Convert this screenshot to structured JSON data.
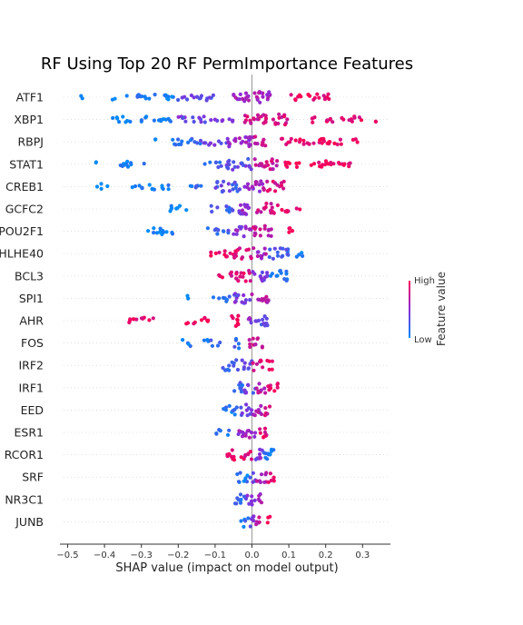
{
  "chart_data": {
    "type": "scatter",
    "title": "RF Using Top 20 RF PermImportance Features",
    "xlabel": "SHAP value (impact on model output)",
    "ylabel": "",
    "xlim": [
      -0.52,
      0.37
    ],
    "xticks": [
      -0.5,
      -0.4,
      -0.3,
      -0.2,
      -0.1,
      0.0,
      0.1,
      0.2,
      0.3
    ],
    "xtick_labels": [
      "−0.5",
      "−0.4",
      "−0.3",
      "−0.2",
      "−0.1",
      "0.0",
      "0.1",
      "0.2",
      "0.3"
    ],
    "grid": false,
    "colorbar": {
      "label": "Feature value",
      "high_label": "High",
      "low_label": "Low",
      "high_color": "#ff0052",
      "mid_color": "#8c2cd8",
      "low_color": "#008bfb"
    },
    "features": [
      {
        "name": "ATF1",
        "segments": [
          [
            -0.47,
            -0.46,
            0
          ],
          [
            -0.38,
            -0.37,
            0
          ],
          [
            -0.34,
            -0.21,
            0.1
          ],
          [
            -0.21,
            -0.1,
            0.35
          ],
          [
            -0.05,
            0.0,
            0.55
          ],
          [
            0.0,
            0.06,
            0.6
          ],
          [
            0.08,
            0.21,
            0.9
          ]
        ]
      },
      {
        "name": "XBP1",
        "segments": [
          [
            -0.38,
            -0.32,
            0
          ],
          [
            -0.31,
            -0.22,
            0.1
          ],
          [
            -0.2,
            -0.05,
            0.4
          ],
          [
            -0.02,
            0.1,
            0.8
          ],
          [
            0.16,
            0.3,
            0.9
          ],
          [
            0.33,
            0.34,
            1
          ]
        ]
      },
      {
        "name": "RBPJ",
        "segments": [
          [
            -0.27,
            -0.26,
            0
          ],
          [
            -0.23,
            -0.14,
            0.15
          ],
          [
            -0.14,
            -0.06,
            0.35
          ],
          [
            -0.07,
            0.0,
            0.55
          ],
          [
            0.0,
            0.04,
            0.7
          ],
          [
            0.08,
            0.3,
            0.95
          ]
        ]
      },
      {
        "name": "STAT1",
        "segments": [
          [
            -0.43,
            -0.42,
            0
          ],
          [
            -0.36,
            -0.28,
            0.05
          ],
          [
            -0.13,
            -0.08,
            0.2
          ],
          [
            -0.07,
            0.0,
            0.35
          ],
          [
            0.0,
            0.07,
            0.75
          ],
          [
            0.08,
            0.28,
            0.95
          ]
        ]
      },
      {
        "name": "CREB1",
        "segments": [
          [
            -0.42,
            -0.39,
            0
          ],
          [
            -0.33,
            -0.22,
            0.05
          ],
          [
            -0.17,
            -0.13,
            0.15
          ],
          [
            -0.1,
            -0.03,
            0.3
          ],
          [
            -0.02,
            0.03,
            0.55
          ],
          [
            0.03,
            0.09,
            0.85
          ]
        ]
      },
      {
        "name": "GCFC2",
        "segments": [
          [
            -0.23,
            -0.17,
            0
          ],
          [
            -0.12,
            -0.05,
            0.2
          ],
          [
            -0.04,
            0.01,
            0.5
          ],
          [
            0.01,
            0.07,
            0.8
          ],
          [
            0.08,
            0.13,
            0.9
          ]
        ]
      },
      {
        "name": "POU2F1",
        "segments": [
          [
            -0.29,
            -0.2,
            0.05
          ],
          [
            -0.12,
            -0.05,
            0.2
          ],
          [
            -0.05,
            0.0,
            0.5
          ],
          [
            0.0,
            0.06,
            0.75
          ],
          [
            0.08,
            0.11,
            0.9
          ]
        ]
      },
      {
        "name": "BHLHE40",
        "segments": [
          [
            -0.12,
            -0.05,
            0.95
          ],
          [
            -0.05,
            0.0,
            0.85
          ],
          [
            0.0,
            0.04,
            0.6
          ],
          [
            0.04,
            0.1,
            0.25
          ],
          [
            0.12,
            0.15,
            0.05
          ]
        ]
      },
      {
        "name": "BCL3",
        "segments": [
          [
            -0.09,
            -0.07,
            0.95
          ],
          [
            -0.06,
            0.0,
            0.85
          ],
          [
            0.0,
            0.05,
            0.4
          ],
          [
            0.05,
            0.1,
            0.1
          ]
        ]
      },
      {
        "name": "SPI1",
        "segments": [
          [
            -0.18,
            -0.17,
            0.05
          ],
          [
            -0.11,
            -0.06,
            0.2
          ],
          [
            -0.05,
            0.0,
            0.4
          ],
          [
            0.0,
            0.05,
            0.7
          ]
        ]
      },
      {
        "name": "AHR",
        "segments": [
          [
            -0.34,
            -0.26,
            0.9
          ],
          [
            -0.18,
            -0.11,
            1
          ],
          [
            -0.06,
            -0.03,
            0.95
          ],
          [
            -0.01,
            0.01,
            0.5
          ],
          [
            0.01,
            0.05,
            0.3
          ]
        ]
      },
      {
        "name": "FOS",
        "segments": [
          [
            -0.19,
            -0.16,
            0.1
          ],
          [
            -0.13,
            -0.08,
            0.15
          ],
          [
            -0.05,
            -0.03,
            0.2
          ],
          [
            -0.01,
            0.03,
            0.7
          ]
        ]
      },
      {
        "name": "IRF2",
        "segments": [
          [
            -0.08,
            -0.04,
            0.2
          ],
          [
            -0.04,
            0.0,
            0.4
          ],
          [
            0.0,
            0.03,
            0.8
          ],
          [
            0.04,
            0.06,
            0.9
          ]
        ]
      },
      {
        "name": "IRF1",
        "segments": [
          [
            -0.05,
            -0.02,
            0.2
          ],
          [
            -0.02,
            0.01,
            0.35
          ],
          [
            0.01,
            0.04,
            0.7
          ],
          [
            0.04,
            0.07,
            0.9
          ]
        ]
      },
      {
        "name": "EED",
        "segments": [
          [
            -0.08,
            -0.04,
            0.1
          ],
          [
            -0.04,
            0.0,
            0.35
          ],
          [
            0.0,
            0.03,
            0.7
          ],
          [
            0.03,
            0.05,
            0.85
          ]
        ]
      },
      {
        "name": "ESR1",
        "segments": [
          [
            -0.1,
            -0.06,
            0.15
          ],
          [
            -0.05,
            -0.02,
            0.55
          ],
          [
            -0.02,
            0.01,
            0.6
          ],
          [
            0.01,
            0.04,
            0.85
          ]
        ]
      },
      {
        "name": "RCOR1",
        "segments": [
          [
            -0.07,
            -0.04,
            0.95
          ],
          [
            -0.03,
            0.0,
            0.85
          ],
          [
            0.0,
            0.03,
            0.45
          ],
          [
            0.03,
            0.07,
            0.1
          ]
        ]
      },
      {
        "name": "SRF",
        "segments": [
          [
            -0.04,
            -0.01,
            0.1
          ],
          [
            -0.01,
            0.01,
            0.35
          ],
          [
            0.01,
            0.04,
            0.7
          ],
          [
            0.04,
            0.06,
            0.9
          ]
        ]
      },
      {
        "name": "NR3C1",
        "segments": [
          [
            -0.05,
            -0.02,
            0.15
          ],
          [
            -0.02,
            0.01,
            0.45
          ],
          [
            0.01,
            0.03,
            0.65
          ]
        ]
      },
      {
        "name": "JUNB",
        "segments": [
          [
            -0.03,
            -0.01,
            0.15
          ],
          [
            -0.01,
            0.01,
            0.45
          ],
          [
            0.01,
            0.03,
            0.75
          ],
          [
            0.04,
            0.05,
            0.95
          ]
        ]
      }
    ]
  }
}
